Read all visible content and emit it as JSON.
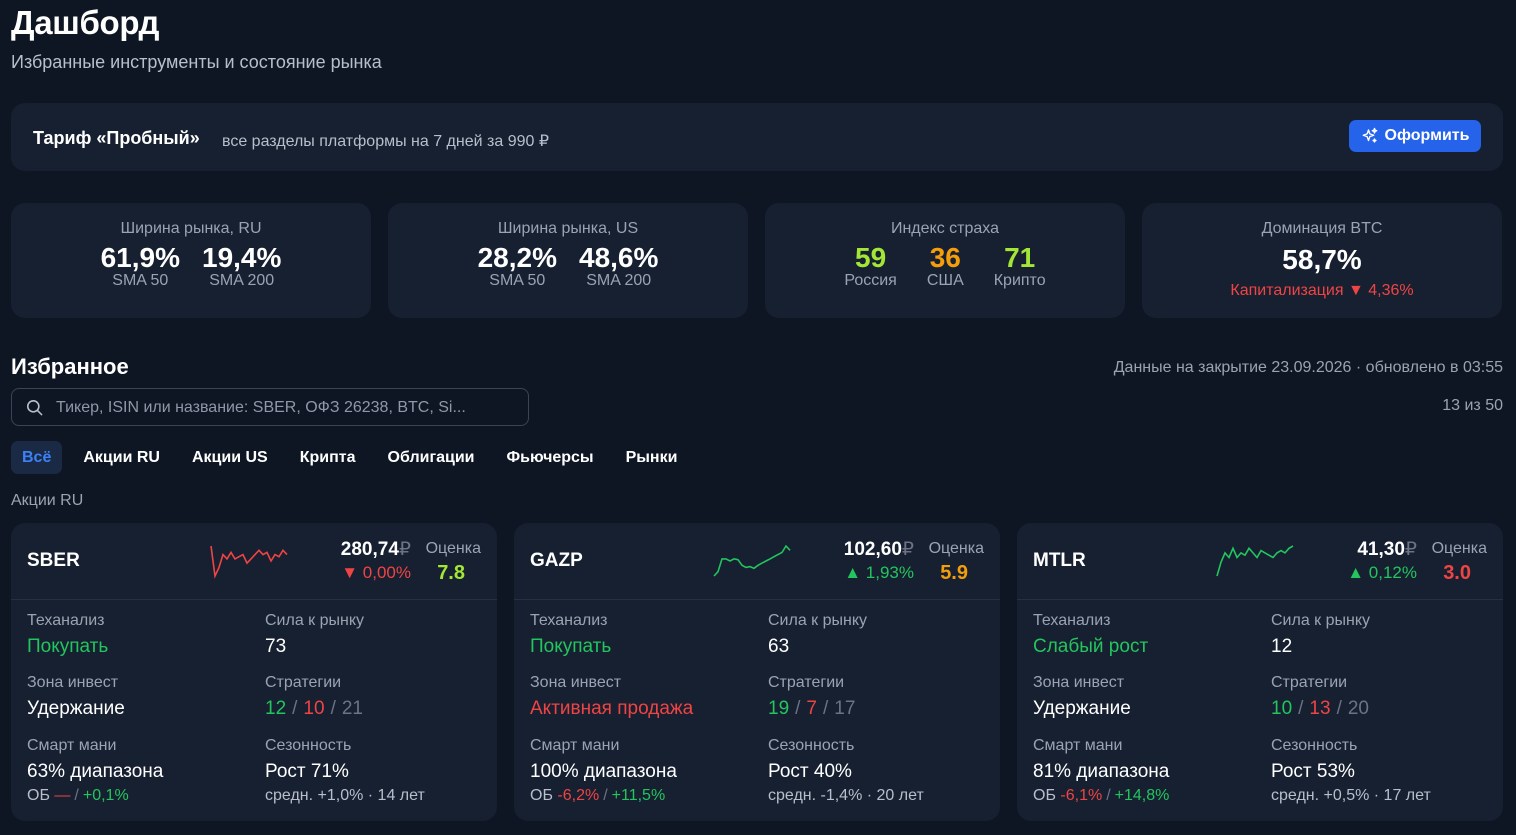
{
  "header": {
    "title": "Дашборд",
    "subtitle": "Избранные инструменты и состояние рынка"
  },
  "promo": {
    "title": "Тариф «Пробный»",
    "text": "все разделы платформы на 7 дней за 990 ₽",
    "button": "Оформить"
  },
  "stats": {
    "breadth_ru": {
      "title": "Ширина рынка, RU",
      "v1": "61,9%",
      "l1": "SMA 50",
      "v2": "19,4%",
      "l2": "SMA 200"
    },
    "breadth_us": {
      "title": "Ширина рынка, US",
      "v1": "28,2%",
      "l1": "SMA 50",
      "v2": "48,6%",
      "l2": "SMA 200"
    },
    "fear": {
      "title": "Индекс страха",
      "v1": "59",
      "l1": "Россия",
      "v2": "36",
      "l2": "США",
      "v3": "71",
      "l3": "Крипто"
    },
    "btc": {
      "title": "Доминация BTC",
      "value": "58,7%",
      "sub": "Капитализация ▼ 4,36%"
    }
  },
  "favorites": {
    "title": "Избранное",
    "updated": "Данные на закрытие 23.09.2026 · обновлено в 03:55",
    "search_placeholder": "Тикер, ISIN или название: SBER, ОФЗ 26238, BTC, Si...",
    "count": "13 из 50",
    "tabs": [
      "Всё",
      "Акции RU",
      "Акции US",
      "Крипта",
      "Облигации",
      "Фьючерсы",
      "Рынки"
    ],
    "section": "Акции RU"
  },
  "labels": {
    "score": "Оценка",
    "ta": "Теханализ",
    "strength": "Сила к рынку",
    "zone": "Зона инвест",
    "strategies": "Стратегии",
    "smart": "Смарт мани",
    "season": "Сезонность",
    "ob": "ОБ",
    "slash": "/",
    "rub": "₽"
  },
  "cards": [
    {
      "ticker": "SBER",
      "price": "280,74",
      "change": "▼ 0,00%",
      "change_color": "#ef4444",
      "score": "7.8",
      "score_color": "#a3e635",
      "spark_color": "#ef4444",
      "spark": [
        8,
        1,
        3,
        6,
        5,
        6.5,
        5,
        5.5,
        6,
        4,
        5,
        6,
        7,
        6,
        6.5,
        4.5,
        6,
        5.5,
        7,
        6
      ],
      "ta": "Покупать",
      "ta_color": "#22c55e",
      "strength": "73",
      "zone": "Удержание",
      "zone_color": "#ffffff",
      "strat_a": "12",
      "strat_b": "10",
      "strat_c": "21",
      "smart": "63% диапазона",
      "ob_a": "—",
      "ob_a_color": "#ef4444",
      "ob_b": "+0,1%",
      "season": "Рост 71%",
      "season_sub": "средн. +1,0% · 14 лет"
    },
    {
      "ticker": "GAZP",
      "price": "102,60",
      "change": "▲ 1,93%",
      "change_color": "#22c55e",
      "score": "5.9",
      "score_color": "#f59e0b",
      "spark_color": "#22c55e",
      "spark": [
        1,
        2,
        5,
        5,
        4.5,
        5,
        4.8,
        3.5,
        3,
        3.2,
        2.8,
        3.5,
        4,
        4.5,
        5,
        5.5,
        6,
        6.5,
        8,
        7
      ],
      "ta": "Покупать",
      "ta_color": "#22c55e",
      "strength": "63",
      "zone": "Активная продажа",
      "zone_color": "#ef4444",
      "strat_a": "19",
      "strat_b": "7",
      "strat_c": "17",
      "smart": "100% диапазона",
      "ob_a": "-6,2%",
      "ob_a_color": "#ef4444",
      "ob_b": "+11,5%",
      "season": "Рост 40%",
      "season_sub": "средн. -1,4% · 20 лет"
    },
    {
      "ticker": "MTLR",
      "price": "41,30",
      "change": "▲ 0,12%",
      "change_color": "#22c55e",
      "score": "3.0",
      "score_color": "#ef4444",
      "spark_color": "#22c55e",
      "spark": [
        1,
        4,
        6,
        5,
        7,
        5,
        6,
        5.5,
        7,
        6,
        5,
        6.5,
        6,
        5.5,
        5,
        6,
        6.5,
        6,
        7,
        7.5
      ],
      "ta": "Слабый рост",
      "ta_color": "#22c55e",
      "strength": "12",
      "zone": "Удержание",
      "zone_color": "#ffffff",
      "strat_a": "10",
      "strat_b": "13",
      "strat_c": "20",
      "smart": "81% диапазона",
      "ob_a": "-6,1%",
      "ob_a_color": "#ef4444",
      "ob_b": "+14,8%",
      "season": "Рост 53%",
      "season_sub": "средн. +0,5% · 17 лет"
    }
  ]
}
